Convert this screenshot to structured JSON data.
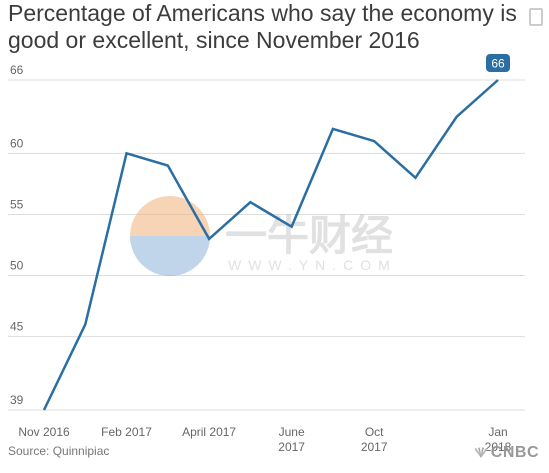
{
  "title": "Percentage of Americans who say the economy is good or excellent, since November 2016",
  "source": "Source: Quinnipiac",
  "brand": "CNBC",
  "watermark": {
    "text_cn": "一牛财经",
    "text_url": "WWW.YN.COM"
  },
  "colors": {
    "line": "#2b6ea3",
    "grid": "#dddddd",
    "tick": "#666666",
    "label_bg": "#2b6ea3"
  },
  "chart_data": {
    "type": "line",
    "title": "Percentage of Americans who say the economy is good or excellent, since November 2016",
    "xlabel": "",
    "ylabel": "",
    "ylim": [
      39,
      66
    ],
    "grid": true,
    "y_ticks": [
      66,
      60,
      55,
      50,
      45,
      39
    ],
    "x_ticks": [
      {
        "label": [
          "Nov 2016"
        ],
        "x": 0
      },
      {
        "label": [
          "Feb 2017"
        ],
        "x": 2
      },
      {
        "label": [
          "April 2017"
        ],
        "x": 4
      },
      {
        "label": [
          "June",
          "2017"
        ],
        "x": 6
      },
      {
        "label": [
          "Oct",
          "2017"
        ],
        "x": 8
      },
      {
        "label": [
          "Jan",
          "2018"
        ],
        "x": 11
      }
    ],
    "series": [
      {
        "values": [
          {
            "x": 0,
            "y": 39
          },
          {
            "x": 1,
            "y": 46
          },
          {
            "x": 2,
            "y": 60
          },
          {
            "x": 3,
            "y": 59
          },
          {
            "x": 4,
            "y": 53
          },
          {
            "x": 5,
            "y": 56
          },
          {
            "x": 6,
            "y": 54
          },
          {
            "x": 7,
            "y": 62
          },
          {
            "x": 8,
            "y": 61
          },
          {
            "x": 9,
            "y": 58
          },
          {
            "x": 10,
            "y": 63
          },
          {
            "x": 11,
            "y": 66
          }
        ]
      }
    ],
    "annotations": [
      {
        "x": 11,
        "y": 66,
        "text": "66"
      }
    ]
  }
}
